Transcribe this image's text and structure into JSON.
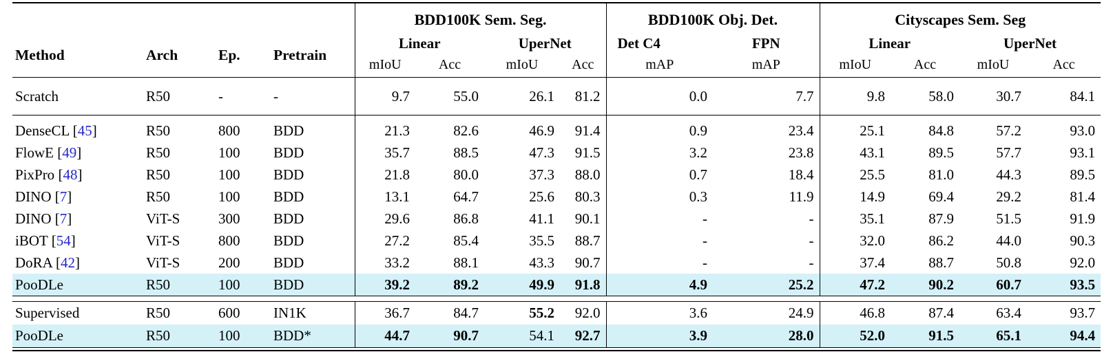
{
  "colors": {
    "row_highlight": "#d4f1f8",
    "citation": "#2626c9",
    "rule": "#000000"
  },
  "header": {
    "col_method": "Method",
    "col_arch": "Arch",
    "col_ep": "Ep.",
    "col_pretrain": "Pretrain",
    "group_bdd_seg": "BDD100K Sem. Seg.",
    "group_bdd_det": "BDD100K Obj. Det.",
    "group_cityscapes": "Cityscapes Sem. Seg",
    "sub_linear": "Linear",
    "sub_upernet": "UperNet",
    "sub_detc4": "Det C4",
    "sub_fpn": "FPN",
    "col_miou": "mIoU",
    "col_acc": "Acc",
    "col_map": "mAP"
  },
  "table": {
    "blocks": [
      {
        "rows": [
          {
            "method": "Scratch",
            "cite": null,
            "highlight": false,
            "bold": [],
            "cells": [
              "R50",
              "-",
              "-",
              "9.7",
              "55.0",
              "26.1",
              "81.2",
              "0.0",
              "7.7",
              "9.8",
              "58.0",
              "30.7",
              "84.1"
            ]
          }
        ]
      },
      {
        "rows": [
          {
            "method": "DenseCL",
            "cite": "45",
            "highlight": false,
            "bold": [],
            "cells": [
              "R50",
              "800",
              "BDD",
              "21.3",
              "82.6",
              "46.9",
              "91.4",
              "0.9",
              "23.4",
              "25.1",
              "84.8",
              "57.2",
              "93.0"
            ]
          },
          {
            "method": "FlowE",
            "cite": "49",
            "highlight": false,
            "bold": [],
            "cells": [
              "R50",
              "100",
              "BDD",
              "35.7",
              "88.5",
              "47.3",
              "91.5",
              "3.2",
              "23.8",
              "43.1",
              "89.5",
              "57.7",
              "93.1"
            ]
          },
          {
            "method": "PixPro",
            "cite": "48",
            "highlight": false,
            "bold": [],
            "cells": [
              "R50",
              "100",
              "BDD",
              "21.8",
              "80.0",
              "37.3",
              "88.0",
              "0.7",
              "18.4",
              "25.5",
              "81.0",
              "44.3",
              "89.5"
            ]
          },
          {
            "method": "DINO",
            "cite": "7",
            "highlight": false,
            "bold": [],
            "cells": [
              "R50",
              "100",
              "BDD",
              "13.1",
              "64.7",
              "25.6",
              "80.3",
              "0.3",
              "11.9",
              "14.9",
              "69.4",
              "29.2",
              "81.4"
            ]
          },
          {
            "method": "DINO",
            "cite": "7",
            "highlight": false,
            "bold": [],
            "cells": [
              "ViT-S",
              "300",
              "BDD",
              "29.6",
              "86.8",
              "41.1",
              "90.1",
              "-",
              "-",
              "35.1",
              "87.9",
              "51.5",
              "91.9"
            ]
          },
          {
            "method": "iBOT",
            "cite": "54",
            "highlight": false,
            "bold": [],
            "cells": [
              "ViT-S",
              "800",
              "BDD",
              "27.2",
              "85.4",
              "35.5",
              "88.7",
              "-",
              "-",
              "32.0",
              "86.2",
              "44.0",
              "90.3"
            ]
          },
          {
            "method": "DoRA",
            "cite": "42",
            "highlight": false,
            "bold": [],
            "cells": [
              "ViT-S",
              "200",
              "BDD",
              "33.2",
              "88.1",
              "43.3",
              "90.7",
              "-",
              "-",
              "37.4",
              "88.7",
              "50.8",
              "92.0"
            ]
          },
          {
            "method": "PooDLe",
            "cite": null,
            "highlight": true,
            "bold": [
              3,
              4,
              5,
              6,
              7,
              8,
              9,
              10,
              11,
              12
            ],
            "cells": [
              "R50",
              "100",
              "BDD",
              "39.2",
              "89.2",
              "49.9",
              "91.8",
              "4.9",
              "25.2",
              "47.2",
              "90.2",
              "60.7",
              "93.5"
            ]
          }
        ]
      },
      {
        "rows": [
          {
            "method": "Supervised",
            "cite": null,
            "highlight": false,
            "bold": [
              5
            ],
            "cells": [
              "R50",
              "600",
              "IN1K",
              "36.7",
              "84.7",
              "55.2",
              "92.0",
              "3.6",
              "24.9",
              "46.8",
              "87.4",
              "63.4",
              "93.7"
            ]
          },
          {
            "method": "PooDLe",
            "cite": null,
            "highlight": true,
            "bold": [
              3,
              4,
              6,
              7,
              8,
              9,
              10,
              11,
              12
            ],
            "cells": [
              "R50",
              "100",
              "BDD*",
              "44.7",
              "90.7",
              "54.1",
              "92.7",
              "3.9",
              "28.0",
              "52.0",
              "91.5",
              "65.1",
              "94.4"
            ]
          }
        ]
      }
    ]
  }
}
